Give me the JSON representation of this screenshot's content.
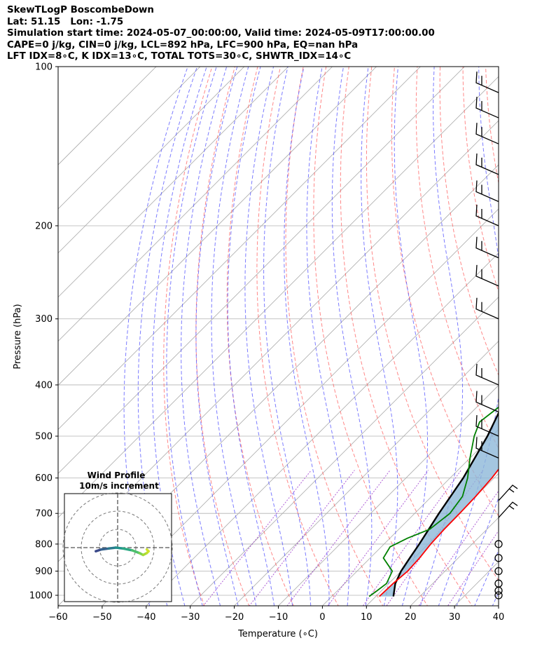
{
  "header": {
    "line1": "SkewTLogP BoscombeDown",
    "line2": "Lat: 51.15   Lon: -1.75",
    "line3": "Simulation start time: 2024-05-07_00:00:00, Valid time: 2024-05-09T17:00:00.00",
    "line4": "CAPE=0 j/kg, CIN=0 j/kg, LCL=892 hPa, LFC=900 hPa, EQ=nan hPa",
    "line5": "LFT IDX=8∘C, K IDX=13∘C, TOTAL TOTS=30∘C, SHWTR_IDX=14∘C"
  },
  "chart_data": {
    "type": "line",
    "subtype": "skew-t log-p",
    "xlabel": "Temperature (∘C)",
    "ylabel": "Pressure (hPa)",
    "xlim": [
      -60,
      40
    ],
    "ylim": [
      1050,
      100
    ],
    "x_ticks": [
      -60,
      -50,
      -40,
      -30,
      -20,
      -10,
      0,
      10,
      20,
      30,
      40
    ],
    "y_ticks": [
      100,
      200,
      300,
      400,
      500,
      600,
      700,
      800,
      900,
      1000
    ],
    "y_scale": "log",
    "grid": true,
    "colors": {
      "temperature": "#ff0000",
      "dewpoint": "#008000",
      "parcel": "#000000",
      "cape_fill": "#8db8d8",
      "dry_adiabats": "#ff5555",
      "moist_adiabats": "#4444ff",
      "mixing_ratio": "#9933cc",
      "isotherms": "#aaaaaa"
    },
    "series": [
      {
        "key": "temperature",
        "points": [
          [
            1005,
            10.8
          ],
          [
            950,
            11.0
          ],
          [
            900,
            11.5
          ],
          [
            850,
            11.2
          ],
          [
            800,
            10.6
          ],
          [
            750,
            10.3
          ],
          [
            700,
            10.2
          ],
          [
            650,
            10.0
          ],
          [
            600,
            9.5
          ],
          [
            550,
            8.5
          ],
          [
            500,
            6.0
          ],
          [
            450,
            3.0
          ],
          [
            400,
            0.5
          ],
          [
            350,
            -4.0
          ],
          [
            300,
            -9.0
          ],
          [
            250,
            -16.0
          ],
          [
            200,
            -24.0
          ],
          [
            185,
            -25.5
          ],
          [
            170,
            -25.0
          ],
          [
            150,
            -24.5
          ],
          [
            130,
            -24.0
          ],
          [
            115,
            -23.0
          ],
          [
            100,
            -22.0
          ]
        ]
      },
      {
        "key": "dewpoint",
        "points": [
          [
            1005,
            8.5
          ],
          [
            980,
            9.0
          ],
          [
            950,
            9.5
          ],
          [
            900,
            8.0
          ],
          [
            850,
            3.0
          ],
          [
            810,
            2.0
          ],
          [
            780,
            4.0
          ],
          [
            750,
            7.0
          ],
          [
            700,
            8.0
          ],
          [
            650,
            7.0
          ],
          [
            600,
            4.0
          ],
          [
            550,
            0.0
          ],
          [
            500,
            -4.0
          ],
          [
            470,
            -6.0
          ],
          [
            440,
            -5.0
          ],
          [
            410,
            -2.0
          ],
          [
            380,
            0.0
          ],
          [
            350,
            -1.0
          ],
          [
            300,
            -6.0
          ],
          [
            260,
            -11.0
          ],
          [
            230,
            -15.0
          ],
          [
            190,
            -22.0
          ],
          [
            170,
            -24.0
          ],
          [
            150,
            -24.5
          ],
          [
            135,
            -25.0
          ],
          [
            125,
            -28.0
          ],
          [
            110,
            -26.0
          ],
          [
            100,
            -25.5
          ]
        ]
      },
      {
        "key": "parcel",
        "points": [
          [
            1005,
            14.0
          ],
          [
            950,
            11.5
          ],
          [
            900,
            10.0
          ],
          [
            850,
            9.0
          ],
          [
            800,
            8.0
          ],
          [
            700,
            5.5
          ],
          [
            600,
            3.0
          ],
          [
            500,
            -1.0
          ],
          [
            400,
            -7.0
          ],
          [
            300,
            -18.0
          ],
          [
            200,
            -38.0
          ],
          [
            150,
            -54.0
          ],
          [
            100,
            -78.0
          ]
        ]
      }
    ],
    "wind_barbs": [
      {
        "p": 1000,
        "barb": "calm"
      },
      {
        "p": 980,
        "barb": "calm"
      },
      {
        "p": 950,
        "barb": "calm"
      },
      {
        "p": 900,
        "barb": "calm"
      },
      {
        "p": 850,
        "barb": "calm"
      },
      {
        "p": 800,
        "barb": "calm"
      },
      {
        "p": 700,
        "barb": "short"
      },
      {
        "p": 650,
        "barb": "short"
      },
      {
        "p": 550,
        "barb": "long"
      },
      {
        "p": 500,
        "barb": "long"
      },
      {
        "p": 450,
        "barb": "long"
      },
      {
        "p": 400,
        "barb": "long"
      },
      {
        "p": 300,
        "barb": "long"
      },
      {
        "p": 260,
        "barb": "long"
      },
      {
        "p": 230,
        "barb": "long"
      },
      {
        "p": 200,
        "barb": "long"
      },
      {
        "p": 180,
        "barb": "long"
      },
      {
        "p": 160,
        "barb": "long"
      },
      {
        "p": 140,
        "barb": "long"
      },
      {
        "p": 125,
        "barb": "long"
      },
      {
        "p": 112,
        "barb": "long"
      }
    ],
    "inset": {
      "title_line1": "Wind Profile",
      "title_line2": "10m/s increment",
      "hodograph_points": [
        [
          -12,
          -2
        ],
        [
          -9,
          -1
        ],
        [
          -5,
          -0.5
        ],
        [
          -1,
          0
        ],
        [
          3,
          -0.5
        ],
        [
          8,
          -1.5
        ],
        [
          12,
          -3
        ],
        [
          14,
          -4
        ],
        [
          16,
          -3
        ],
        [
          17,
          -2
        ],
        [
          16,
          -1
        ]
      ]
    }
  }
}
